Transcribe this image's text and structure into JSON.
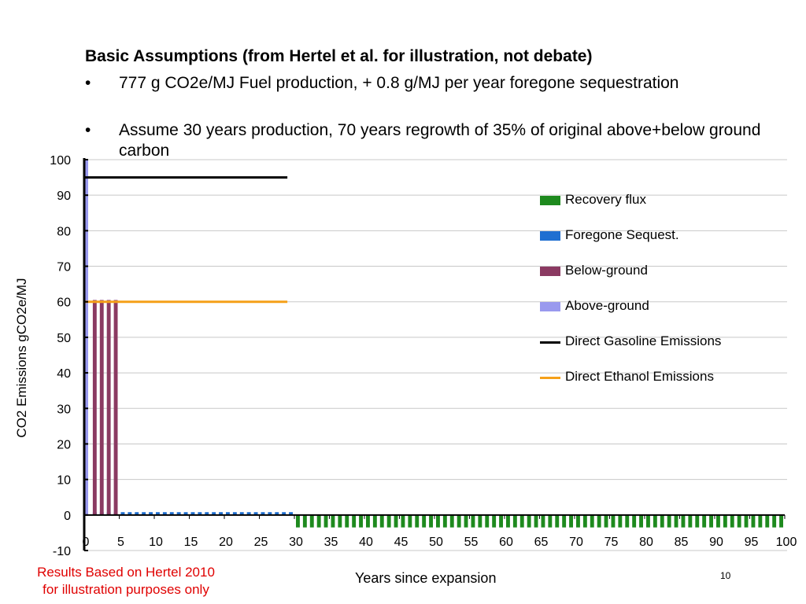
{
  "slide": {
    "heading": "Basic Assumptions (from Hertel et al. for illustration, not debate)",
    "bullets": [
      "777 g CO2e/MJ Fuel production, + 0.8 g/MJ per year foregone sequestration",
      "Assume 30 years production, 70 years regrowth of 35% of original above+below ground carbon"
    ],
    "bullet_marker": "•",
    "note_lines": [
      "Results Based on Hertel 2010",
      "for illustration purposes only"
    ],
    "page_number": "10",
    "note_color": "#e00000"
  },
  "chart_data": {
    "type": "bar",
    "title": "",
    "xlabel": "Years since expansion",
    "ylabel": "CO2 Emissions gCO2e/MJ",
    "ylim": [
      -10,
      100
    ],
    "yticks": [
      -10,
      0,
      10,
      20,
      30,
      40,
      50,
      60,
      70,
      80,
      90,
      100
    ],
    "xlim": [
      0,
      100
    ],
    "xticks": [
      0,
      5,
      10,
      15,
      20,
      25,
      30,
      35,
      40,
      45,
      50,
      55,
      60,
      65,
      70,
      75,
      80,
      85,
      90,
      95,
      100
    ],
    "grid": "horizontal",
    "legend_position": "right",
    "series": [
      {
        "name": "Recovery flux",
        "kind": "bar",
        "color": "#1e8a1e",
        "x_from": 30,
        "x_to": 99,
        "value": -3.5
      },
      {
        "name": "Foregone Sequest.",
        "kind": "bar",
        "color": "#1f6fd1",
        "x_from": 1,
        "x_to": 29,
        "value": 0.8
      },
      {
        "name": "Below-ground",
        "kind": "bar",
        "color": "#8b3a62",
        "x_from": 1,
        "x_to": 4,
        "value": 60.5
      },
      {
        "name": "Above-ground",
        "kind": "bar",
        "color": "#9999ee",
        "x_from": 0,
        "x_to": 0,
        "value": 100
      },
      {
        "name": "Direct Gasoline Emissions",
        "kind": "line",
        "color": "#000000",
        "x": [
          0,
          29
        ],
        "y": [
          95,
          95
        ]
      },
      {
        "name": "Direct Ethanol Emissions",
        "kind": "line",
        "color": "#f5a019",
        "x": [
          0,
          29
        ],
        "y": [
          60,
          60
        ]
      }
    ]
  }
}
